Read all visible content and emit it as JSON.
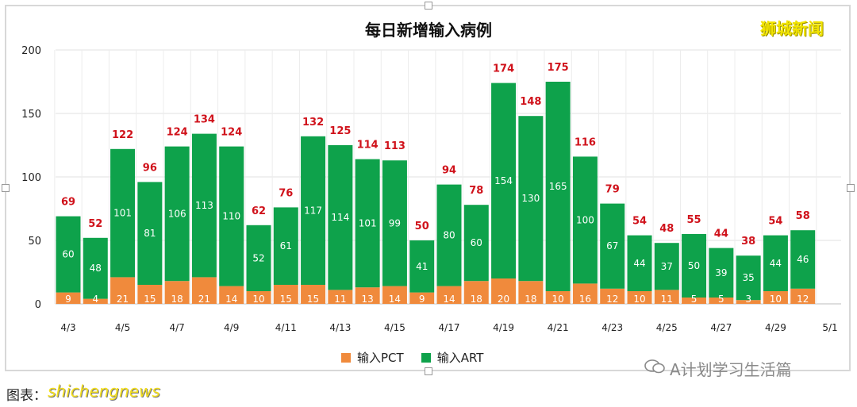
{
  "watermark": "狮城新闻",
  "footer_left": "图表：",
  "footer_site": "shichengnews",
  "wechat_label": "A计划学习生活篇",
  "colors": {
    "pct": "#f08a3c",
    "art": "#0ea24b",
    "label": "#d0121b"
  },
  "chart_data": {
    "type": "bar",
    "title": "每日新增输入病例",
    "categories": [
      "4/3",
      "4/4",
      "4/5",
      "4/6",
      "4/7",
      "4/8",
      "4/9",
      "4/10",
      "4/11",
      "4/12",
      "4/13",
      "4/14",
      "4/15",
      "4/16",
      "4/17",
      "4/18",
      "4/19",
      "4/20",
      "4/21",
      "4/22",
      "4/23",
      "4/24",
      "4/25",
      "4/26",
      "4/27",
      "4/28",
      "4/29",
      "4/30"
    ],
    "xtick_labels": [
      "4/3",
      "4/5",
      "4/7",
      "4/9",
      "4/11",
      "4/13",
      "4/15",
      "4/17",
      "4/19",
      "4/21",
      "4/23",
      "4/25",
      "4/27",
      "4/29",
      "5/1"
    ],
    "series": [
      {
        "name": "输入PCT",
        "values": [
          9,
          4,
          21,
          15,
          18,
          21,
          14,
          10,
          15,
          15,
          11,
          13,
          14,
          9,
          14,
          18,
          20,
          18,
          10,
          16,
          12,
          10,
          11,
          5,
          5,
          3,
          10,
          12
        ]
      },
      {
        "name": "输入ART",
        "values": [
          60,
          48,
          101,
          81,
          106,
          113,
          110,
          52,
          61,
          117,
          114,
          101,
          99,
          41,
          80,
          60,
          154,
          130,
          165,
          100,
          67,
          44,
          37,
          50,
          39,
          35,
          44,
          46
        ]
      }
    ],
    "totals": [
      69,
      52,
      122,
      96,
      124,
      134,
      124,
      62,
      76,
      132,
      125,
      114,
      113,
      50,
      94,
      78,
      174,
      148,
      175,
      116,
      79,
      54,
      48,
      55,
      44,
      38,
      54,
      58
    ],
    "yticks": [
      0,
      50,
      100,
      150,
      200
    ],
    "ylim": [
      0,
      200
    ],
    "stacked": true,
    "legend": "bottom",
    "grid": true
  }
}
